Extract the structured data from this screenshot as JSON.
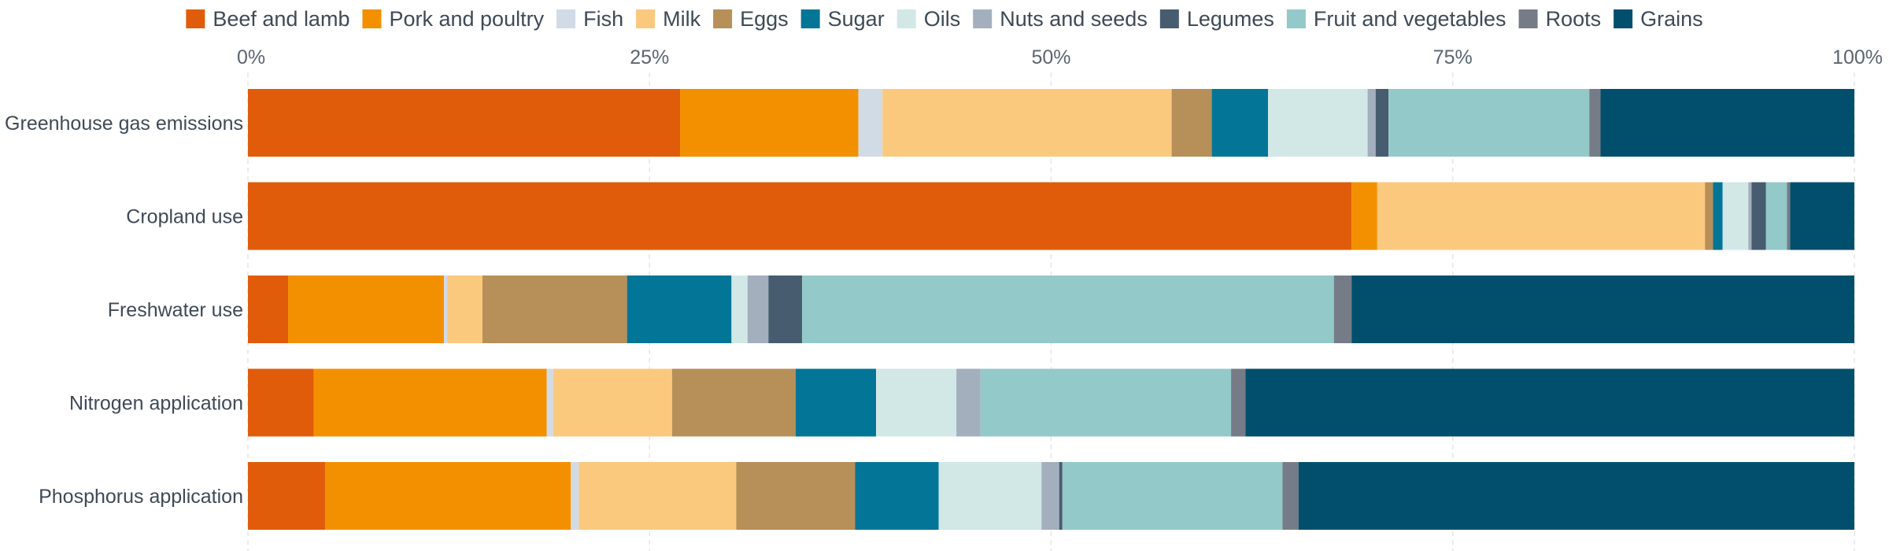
{
  "chart_data": {
    "type": "bar",
    "orientation": "horizontal",
    "stacked": true,
    "normalized": true,
    "title": "",
    "xlabel": "",
    "ylabel": "",
    "xlim": [
      0,
      100
    ],
    "x_ticks": [
      0,
      25,
      50,
      75,
      100
    ],
    "x_tick_labels": [
      "0%",
      "25%",
      "50%",
      "75%",
      "100%"
    ],
    "x_axis_position": "top",
    "grid": true,
    "legend_position": "top",
    "categories": [
      "Greenhouse gas emissions",
      "Cropland use",
      "Freshwater use",
      "Nitrogen application",
      "Phosphorus application"
    ],
    "series": [
      {
        "name": "Beef and lamb",
        "color": "#e05c0a",
        "values": [
          26.9,
          68.7,
          2.5,
          4.1,
          4.8
        ]
      },
      {
        "name": "Pork and poultry",
        "color": "#f39000",
        "values": [
          11.1,
          1.6,
          9.7,
          14.5,
          15.3
        ]
      },
      {
        "name": "Fish",
        "color": "#d1dbe6",
        "values": [
          1.5,
          0.0,
          0.2,
          0.4,
          0.5
        ]
      },
      {
        "name": "Milk",
        "color": "#fbc97e",
        "values": [
          18.0,
          20.4,
          2.2,
          7.4,
          9.8
        ]
      },
      {
        "name": "Eggs",
        "color": "#b78f58",
        "values": [
          2.5,
          0.5,
          9.0,
          7.7,
          7.4
        ]
      },
      {
        "name": "Sugar",
        "color": "#037597",
        "values": [
          3.5,
          0.6,
          6.5,
          5.0,
          5.2
        ]
      },
      {
        "name": "Oils",
        "color": "#d2e8e6",
        "values": [
          6.2,
          1.6,
          1.0,
          5.0,
          6.4
        ]
      },
      {
        "name": "Nuts and seeds",
        "color": "#a3afbd",
        "values": [
          0.5,
          0.2,
          1.3,
          1.5,
          1.1
        ]
      },
      {
        "name": "Legumes",
        "color": "#475c6f",
        "values": [
          0.8,
          0.9,
          2.1,
          0.0,
          0.2
        ]
      },
      {
        "name": "Fruit and vegetables",
        "color": "#93c9c8",
        "values": [
          12.5,
          1.3,
          33.1,
          15.6,
          13.7
        ]
      },
      {
        "name": "Roots",
        "color": "#767c87",
        "values": [
          0.7,
          0.2,
          1.1,
          0.9,
          1.0
        ]
      },
      {
        "name": "Grains",
        "color": "#014f6c",
        "values": [
          15.8,
          4.0,
          31.3,
          37.9,
          34.6
        ]
      }
    ]
  }
}
